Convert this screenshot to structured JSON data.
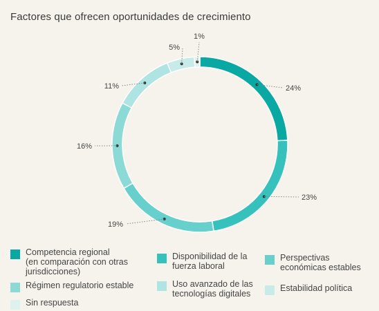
{
  "chart_data": {
    "type": "pie",
    "title": "Factores que ofrecen oportunidades de crecimiento",
    "categories": [
      "Competencia regional\n(en comparación con otras\njurisdicciones)",
      "Disponibilidad de la\nfuerza laboral",
      "Perspectivas\neconómicas estables",
      "Régimen regulatorio estable",
      "Uso avanzado de las\ntecnologías digitales",
      "Estabilidad política",
      "Sin respuesta"
    ],
    "values": [
      24,
      23,
      19,
      16,
      11,
      5,
      1
    ],
    "value_labels": [
      "24%",
      "23%",
      "19%",
      "16%",
      "11%",
      "5%",
      "1%"
    ],
    "colors": [
      "#0aa8a2",
      "#36c1bd",
      "#68d0cc",
      "#8cdad6",
      "#aee4e1",
      "#c7ebe8",
      "#ddf1ef"
    ],
    "legend_placement": "bottom"
  }
}
